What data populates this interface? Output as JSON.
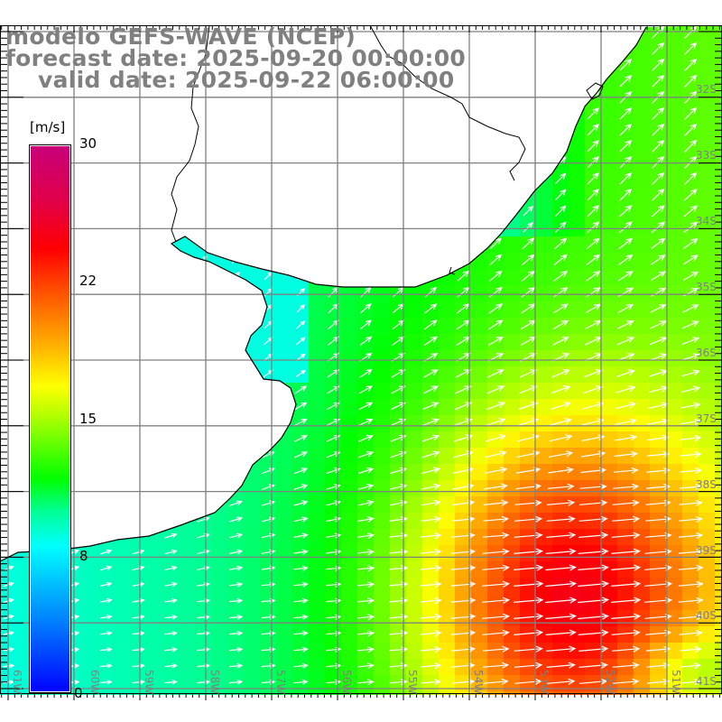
{
  "title": {
    "model": "modelo GEFS-WAVE (NCEP)",
    "forecast": "forecast date: 2025-09-20 00:00:00",
    "valid": "valid date: 2025-09-22 06:00:00"
  },
  "colorbar": {
    "unit": "[m/s]",
    "labels": [
      "30",
      "22",
      "15",
      "8",
      "0"
    ],
    "min": 0,
    "max": 30
  },
  "lat_labels": [
    "32S",
    "33S",
    "34S",
    "35S",
    "36S",
    "37S",
    "38S",
    "39S",
    "40S",
    "41S"
  ],
  "lon_labels": [
    "61W",
    "60W",
    "59W",
    "58W",
    "57W",
    "56W",
    "55W",
    "54W",
    "53W",
    "52W",
    "51W"
  ],
  "colors": {
    "grid": "#808080",
    "coast": "#000000",
    "arrow": "#ffffff",
    "land": "#ffffff"
  }
}
